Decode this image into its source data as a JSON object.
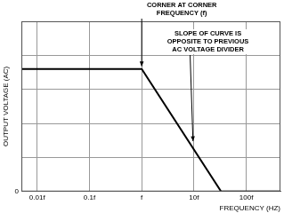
{
  "chart_data": {
    "type": "line",
    "x_label": "FREQUENCY (HZ)",
    "y_label": "OUTPUT VOLTAGE (AC)",
    "x": [
      0.005,
      1,
      33,
      450
    ],
    "values": [
      3.6,
      3.6,
      0,
      0
    ],
    "color": "#000000",
    "log": "x",
    "xlim": [
      0.005,
      450
    ],
    "xticks": [
      {
        "value": 0.01,
        "label": "0.01f"
      },
      {
        "value": 0.1,
        "label": "0.1f"
      },
      {
        "value": 1,
        "label": "f"
      },
      {
        "value": 10,
        "label": "10f"
      },
      {
        "value": 100,
        "label": "100f"
      }
    ],
    "ylim": [
      0,
      5
    ],
    "yticks": [
      0,
      {
        "value": 1,
        "label": null
      },
      {
        "value": 2,
        "label": null
      },
      {
        "value": 3,
        "label": null
      },
      {
        "value": 4,
        "label": null
      },
      {
        "value": 5,
        "label": null
      }
    ],
    "grid": true,
    "annotations": [
      {
        "text": [
          "CORNER AT CORNER",
          "FREQUENCY (f)"
        ],
        "x": 1,
        "y": 3.6
      },
      {
        "text": [
          "SLOPE OF CURVE IS",
          "OPPOSITE TO PREVIOUS",
          "AC VOLTAGE DIVIDER"
        ],
        "x": 8.5,
        "y": 1.4
      }
    ]
  }
}
